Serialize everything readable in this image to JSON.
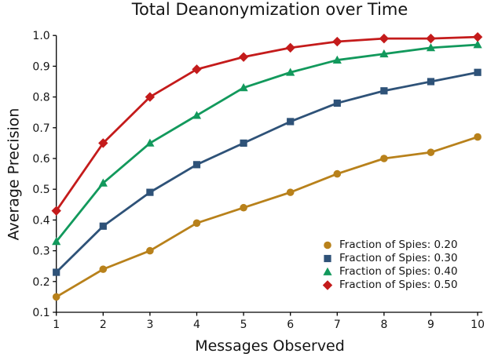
{
  "figure": {
    "background": "#ffffff",
    "text_color": "#151515",
    "axis_color": "#000000"
  },
  "chart_data": {
    "type": "line",
    "title": "Total Deanonymization over Time",
    "xlabel": "Messages Observed",
    "ylabel": "Average Precision",
    "x": [
      1,
      2,
      3,
      4,
      5,
      6,
      7,
      8,
      9,
      10
    ],
    "xtick_labels": [
      "1",
      "2",
      "3",
      "4",
      "5",
      "6",
      "7",
      "8",
      "9",
      "10"
    ],
    "yticks": [
      0.1,
      0.2,
      0.3,
      0.4,
      0.5,
      0.6,
      0.7,
      0.8,
      0.9,
      1.0
    ],
    "ytick_labels": [
      "0.1",
      "0.2",
      "0.3",
      "0.4",
      "0.5",
      "0.6",
      "0.7",
      "0.8",
      "0.9",
      "1.0"
    ],
    "xlim": [
      1,
      10
    ],
    "ylim": [
      0.1,
      1.0
    ],
    "grid": false,
    "legend_position": "lower right",
    "series": [
      {
        "name": "Fraction of Spies: 0.20",
        "color": "#B8811B",
        "marker": "circle",
        "values": [
          0.15,
          0.24,
          0.3,
          0.39,
          0.44,
          0.49,
          0.55,
          0.6,
          0.62,
          0.67
        ]
      },
      {
        "name": "Fraction of Spies: 0.30",
        "color": "#2E5278",
        "marker": "square",
        "values": [
          0.23,
          0.38,
          0.49,
          0.58,
          0.65,
          0.72,
          0.78,
          0.82,
          0.85,
          0.88
        ]
      },
      {
        "name": "Fraction of Spies: 0.40",
        "color": "#12995C",
        "marker": "triangle",
        "values": [
          0.33,
          0.52,
          0.65,
          0.74,
          0.83,
          0.88,
          0.92,
          0.94,
          0.96,
          0.97
        ]
      },
      {
        "name": "Fraction of Spies: 0.50",
        "color": "#C41B1B",
        "marker": "diamond",
        "values": [
          0.43,
          0.65,
          0.8,
          0.89,
          0.93,
          0.96,
          0.98,
          0.99,
          0.99,
          0.995
        ]
      }
    ]
  }
}
